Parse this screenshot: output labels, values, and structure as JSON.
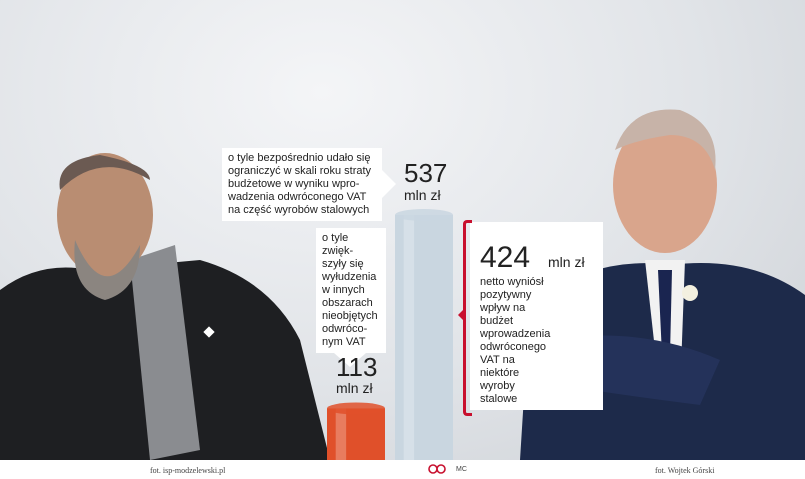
{
  "callout_top": {
    "lines": [
      "o tyle bezpośrednio udało się",
      "ograniczyć w skali roku straty",
      "budżetowe w wyniku wpro-",
      "wadzenia odwróconego VAT",
      "na część wyrobów stalowych"
    ]
  },
  "callout_mid": {
    "lines": [
      "o tyle zwięk-",
      "szyły się",
      "wyłudzenia",
      "w innych",
      "obszarach",
      "nieobjętych",
      "odwróco-",
      "nym VAT"
    ]
  },
  "value_537": {
    "number": "537",
    "unit": "mln zł"
  },
  "value_113": {
    "number": "113",
    "unit": "mln zł"
  },
  "value_424": {
    "number": "424",
    "unit": "mln zł"
  },
  "panel_right": {
    "lines": [
      "netto wyniósł",
      "pozytywny",
      "wpływ na budżet",
      "wprowadzenia",
      "odwróconego",
      "VAT na",
      "niektóre",
      "wyroby",
      "stalowe"
    ]
  },
  "bars": {
    "tall_value": 537,
    "short_value": 113,
    "tall_color": "#c9d6e0",
    "short_color": "#e0502a"
  },
  "accent_color": "#c8102e",
  "footer": {
    "credit_left": "fot. isp-modzelewski.pl",
    "credit_right": "fot. Wojtek Górski",
    "author": "MC"
  }
}
